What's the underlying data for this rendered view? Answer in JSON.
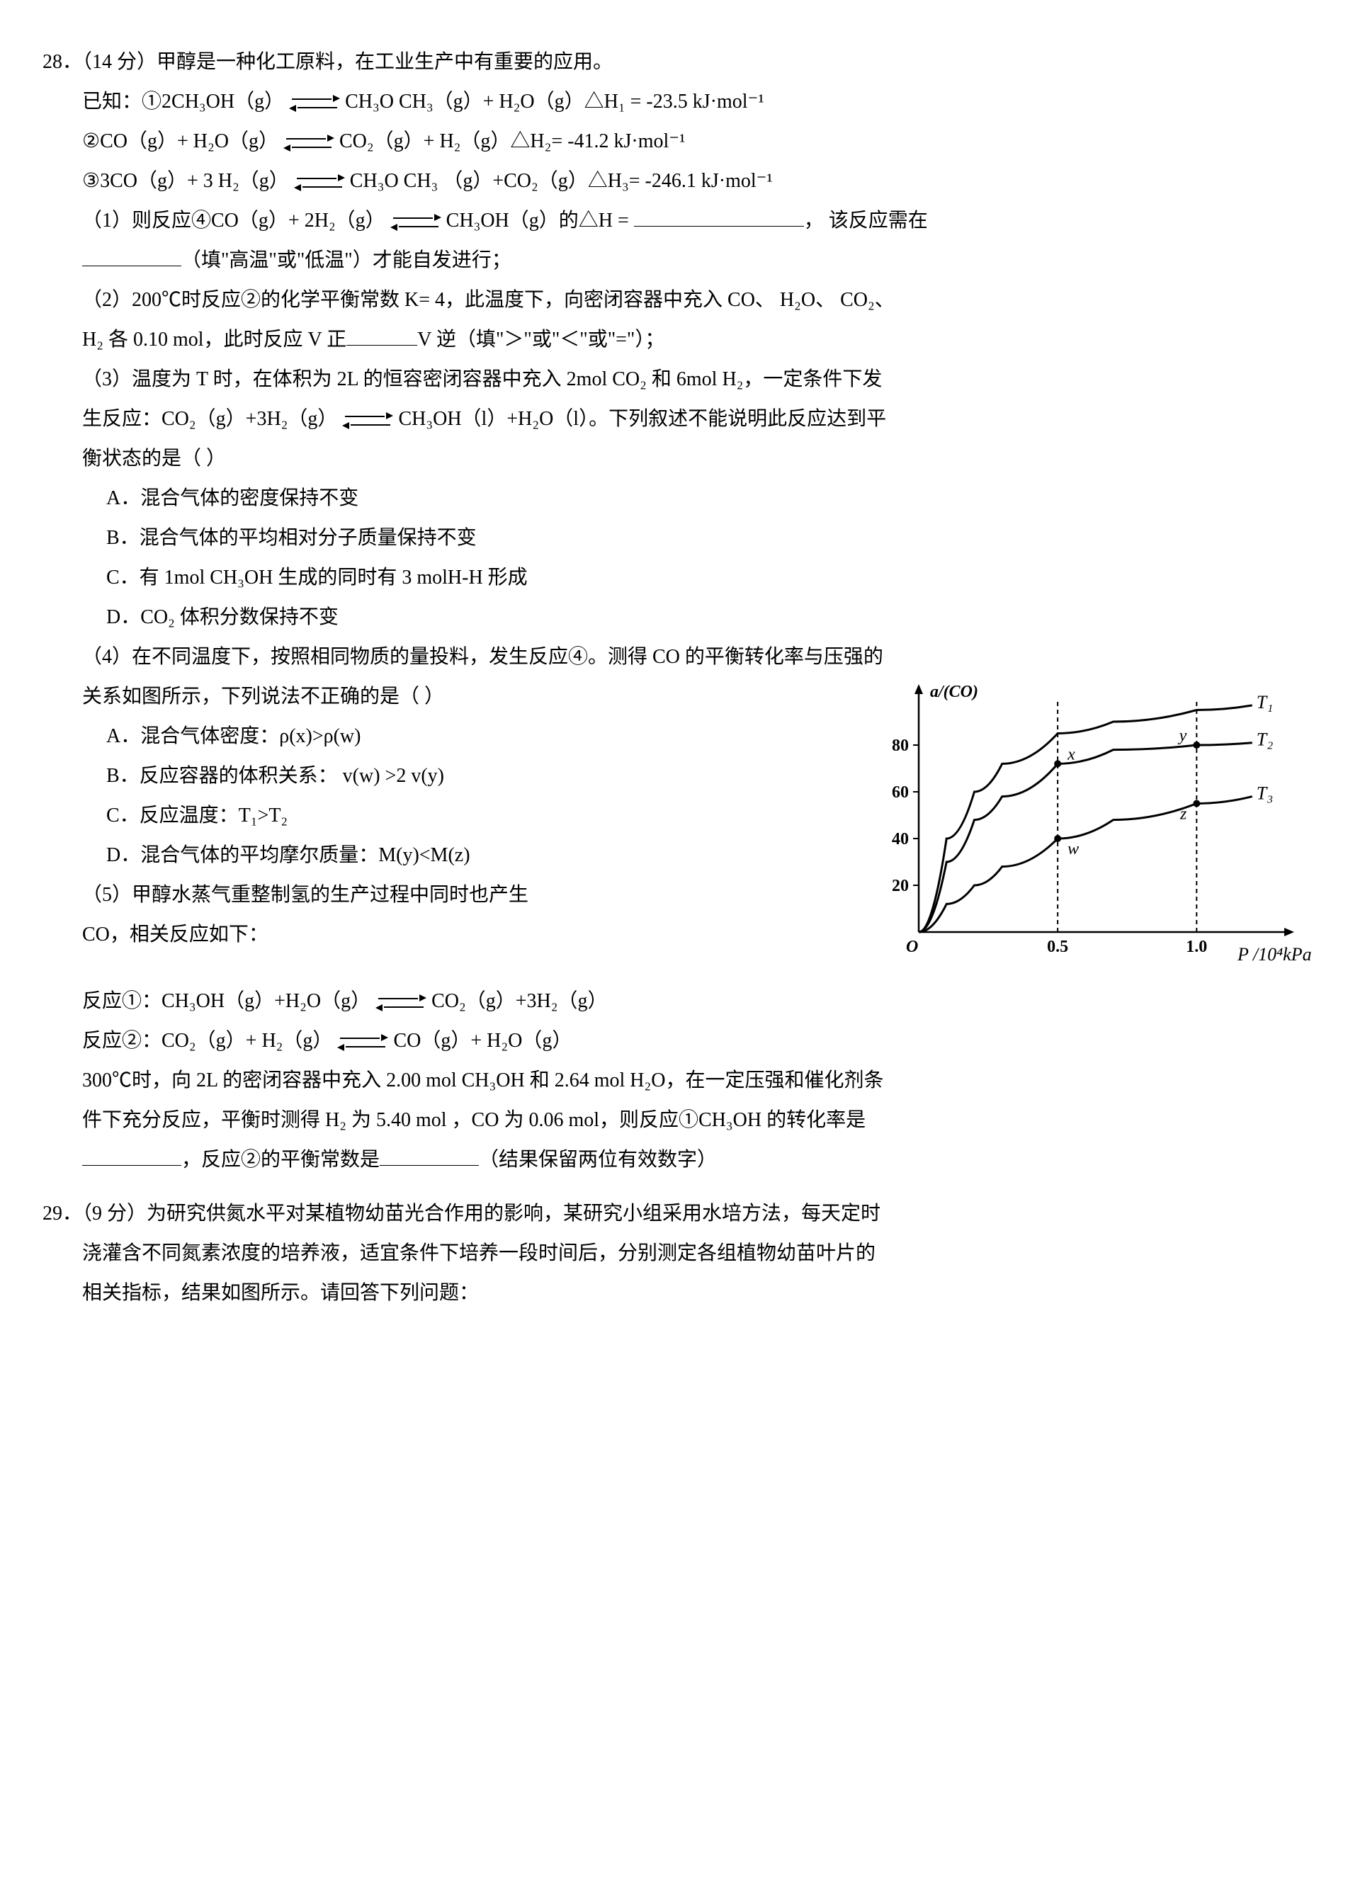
{
  "q28": {
    "number": "28",
    "points": "（14 分）",
    "stem": "甲醇是一种化工原料，在工业生产中有重要的应用。",
    "given_label": "已知：",
    "eqs": {
      "e1_left": "①2CH₃OH（g）",
      "e1_right": "CH₃O CH₃（g）+ H₂O（g）△H₁ = -23.5 kJ·mol⁻¹",
      "e2_left": "②CO（g）+   H₂O（g）",
      "e2_right": "CO₂（g）+   H₂（g）△H₂= -41.2 kJ·mol⁻¹",
      "e3_left": "③3CO（g）+ 3 H₂（g）",
      "e3_right": "CH₃O CH₃   （g）+CO₂（g）△H₃= -246.1 kJ·mol⁻¹"
    },
    "p1": {
      "pre": "（1）则反应④CO（g）+ 2H₂（g）",
      "post_arrow": "CH₃OH（g）的△H = ",
      "tail": "，  该反应需在",
      "line2_tail": "（填\"高温\"或\"低温\"）才能自发进行；"
    },
    "p2": {
      "line1": "（2）200℃时反应②的化学平衡常数 K= 4，此温度下，向密闭容器中充入 CO、  H₂O、 CO₂、",
      "line2a": "H₂ 各 0.10 mol，此时反应 V 正",
      "line2b": "V 逆（填\"＞\"或\"＜\"或\"=\"）；"
    },
    "p3": {
      "line1": "（3）温度为 T 时，在体积为 2L 的恒容密闭容器中充入 2mol CO₂ 和 6mol H₂，一定条件下发",
      "line2a": "生反应：CO₂（g）+3H₂（g）",
      "line2b": "CH₃OH（l）+H₂O（l）。下列叙述不能说明此反应达到平",
      "line3": "衡状态的是（      ）",
      "optA": "A．混合气体的密度保持不变",
      "optB": "B．混合气体的平均相对分子质量保持不变",
      "optC": "C．有 1mol CH₃OH 生成的同时有 3 molH-H 形成",
      "optD": "D．CO₂ 体积分数保持不变"
    },
    "p4": {
      "line1": "（4）在不同温度下，按照相同物质的量投料，发生反应④。测得 CO 的平衡转化率与压强的",
      "line2": "关系如图所示，下列说法不正确的是（      ）",
      "optA": "A．混合气体密度：ρ(x)>ρ(w)",
      "optB": "B．反应容器的体积关系：  v(w) >2 v(y)",
      "optC": "C．反应温度：T₁>T₂",
      "optD": "D．混合气体的平均摩尔质量：M(y)<M(z)"
    },
    "p5": {
      "line1": "（5）甲醇水蒸气重整制氢的生产过程中同时也产生",
      "line2": "CO，相关反应如下：",
      "r1_left": "反应①：CH₃OH（g）+H₂O（g）",
      "r1_right": "CO₂（g）+3H₂（g）",
      "r2_left": "反应②：CO₂（g）+   H₂（g）",
      "r2_right": "CO（g）+ H₂O（g）",
      "line3": "300℃时，向 2L 的密闭容器中充入 2.00 mol CH₃OH 和 2.64 mol H₂O，在一定压强和催化剂条",
      "line4": "件下充分反应，平衡时测得 H₂ 为 5.40 mol ，CO 为 0.06 mol，则反应①CH₃OH 的转化率是",
      "line5a": "，反应②的平衡常数是",
      "line5b": "（结果保留两位有效数字）"
    },
    "chart": {
      "y_axis_label": "a/(CO)",
      "x_axis_label": "P /10⁴kPa",
      "y_ticks": [
        "20",
        "40",
        "60",
        "80"
      ],
      "x_ticks": [
        "0.5",
        "1.0"
      ],
      "origin_label": "O",
      "series_labels": [
        "T₁",
        "T₂",
        "T₃"
      ],
      "point_labels": [
        "x",
        "y",
        "w",
        "z"
      ],
      "colors": {
        "axis": "#000000",
        "curve": "#000000",
        "dash": "#000000",
        "bg": "#ffffff"
      },
      "curves": {
        "T1": [
          [
            0,
            0
          ],
          [
            0.1,
            40
          ],
          [
            0.2,
            60
          ],
          [
            0.3,
            72
          ],
          [
            0.5,
            85
          ],
          [
            0.7,
            90
          ],
          [
            1.0,
            95
          ],
          [
            1.2,
            97
          ]
        ],
        "T2": [
          [
            0,
            0
          ],
          [
            0.1,
            30
          ],
          [
            0.2,
            48
          ],
          [
            0.3,
            58
          ],
          [
            0.5,
            72
          ],
          [
            0.7,
            78
          ],
          [
            1.0,
            80
          ],
          [
            1.2,
            81
          ]
        ],
        "T3": [
          [
            0,
            0
          ],
          [
            0.1,
            12
          ],
          [
            0.2,
            20
          ],
          [
            0.3,
            28
          ],
          [
            0.5,
            40
          ],
          [
            0.7,
            48
          ],
          [
            1.0,
            55
          ],
          [
            1.2,
            58
          ]
        ]
      },
      "points": {
        "x": [
          0.5,
          72
        ],
        "w": [
          0.5,
          40
        ],
        "y": [
          1.0,
          80
        ],
        "z": [
          1.0,
          55
        ]
      },
      "xlim": [
        0,
        1.3
      ],
      "ylim": [
        0,
        100
      ],
      "line_width": 2.5,
      "dash": "6,5"
    }
  },
  "q29": {
    "number": "29",
    "points": "（9 分）",
    "line1": "为研究供氮水平对某植物幼苗光合作用的影响，某研究小组采用水培方法，每天定时",
    "line2": "浇灌含不同氮素浓度的培养液，适宜条件下培养一段时间后，分别测定各组植物幼苗叶片的",
    "line3": "相关指标，结果如图所示。请回答下列问题："
  }
}
